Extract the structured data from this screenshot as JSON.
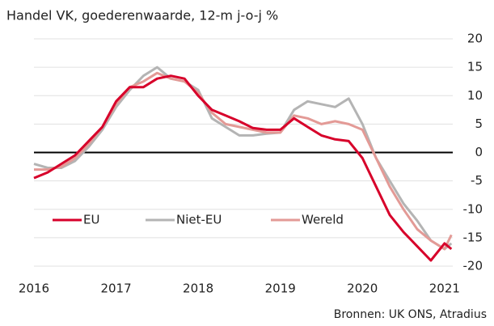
{
  "chart_data": {
    "type": "line",
    "title": "Handel VK, goederenwaarde, 12-m j-o-j %",
    "source": "Bronnen: UK ONS, Atradius",
    "x": [
      2016,
      2016.167,
      2016.333,
      2016.5,
      2016.667,
      2016.833,
      2017,
      2017.167,
      2017.333,
      2017.5,
      2017.667,
      2017.833,
      2018,
      2018.167,
      2018.333,
      2018.5,
      2018.667,
      2018.833,
      2019,
      2019.167,
      2019.333,
      2019.5,
      2019.667,
      2019.833,
      2020,
      2020.167,
      2020.333,
      2020.5,
      2020.667,
      2020.833,
      2021,
      2021.083
    ],
    "series": [
      {
        "name": "EU",
        "color": "#d7002a",
        "values": [
          -4.5,
          -3.5,
          -2,
          -0.5,
          2,
          4.5,
          9,
          11.5,
          11.5,
          13,
          13.5,
          13,
          10,
          7.5,
          6.5,
          5.5,
          4.3,
          4,
          4,
          6,
          4.5,
          3,
          2.3,
          2,
          -1,
          -6,
          -11,
          -14,
          -16.5,
          -19,
          -16,
          -17
        ]
      },
      {
        "name": "Niet-EU",
        "color": "#b4b4b4",
        "values": [
          -2,
          -2.7,
          -2.7,
          -1.5,
          1,
          4,
          8,
          11,
          13.5,
          15,
          13,
          12.5,
          11,
          6,
          4.5,
          3,
          3,
          3.3,
          3.5,
          7.5,
          9,
          8.5,
          8,
          9.5,
          5,
          -1,
          -5,
          -9,
          -12,
          -15.5,
          -17,
          -16
        ]
      },
      {
        "name": "Wereld",
        "color": "#e39a96",
        "values": [
          -3,
          -3,
          -2.5,
          -1,
          1.5,
          4.5,
          8.5,
          11.5,
          12.5,
          14,
          13,
          12.5,
          10.5,
          7,
          5,
          4.5,
          4,
          3.5,
          3.5,
          6.5,
          6,
          5,
          5.5,
          5,
          4,
          -1,
          -6,
          -10,
          -13.5,
          -15.5,
          -17,
          -14.5
        ]
      }
    ],
    "xlim": [
      2016,
      2021.1
    ],
    "xticks": [
      2016,
      2017,
      2018,
      2019,
      2020,
      2021
    ],
    "ylim": [
      -20,
      20
    ],
    "yticks": [
      -20,
      -15,
      -10,
      -5,
      0,
      5,
      10,
      15,
      20
    ],
    "grid": true
  }
}
